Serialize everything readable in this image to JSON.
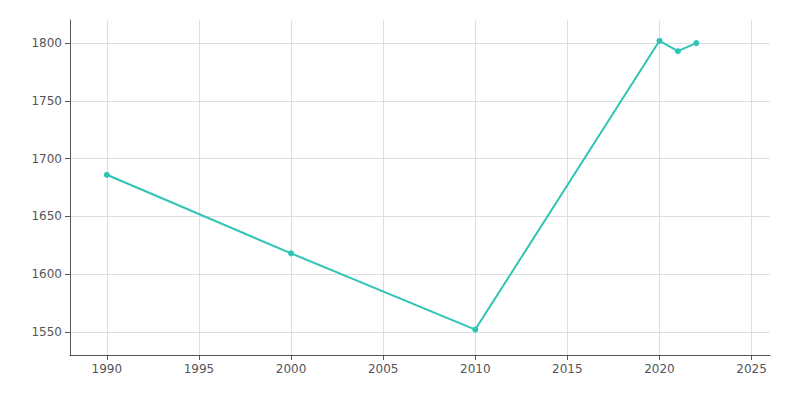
{
  "chart_data": {
    "type": "line",
    "x": [
      1990,
      2000,
      2010,
      2020,
      2021,
      2022
    ],
    "values": [
      1686,
      1618,
      1552,
      1802,
      1793,
      1800
    ],
    "color": "#2ec4b6",
    "marker": "circle",
    "xlim": [
      1988,
      2026
    ],
    "ylim": [
      1530,
      1820
    ],
    "xticks": [
      1990,
      1995,
      2000,
      2005,
      2010,
      2015,
      2020,
      2025
    ],
    "yticks": [
      1550,
      1600,
      1650,
      1700,
      1750,
      1800
    ],
    "grid": true
  }
}
